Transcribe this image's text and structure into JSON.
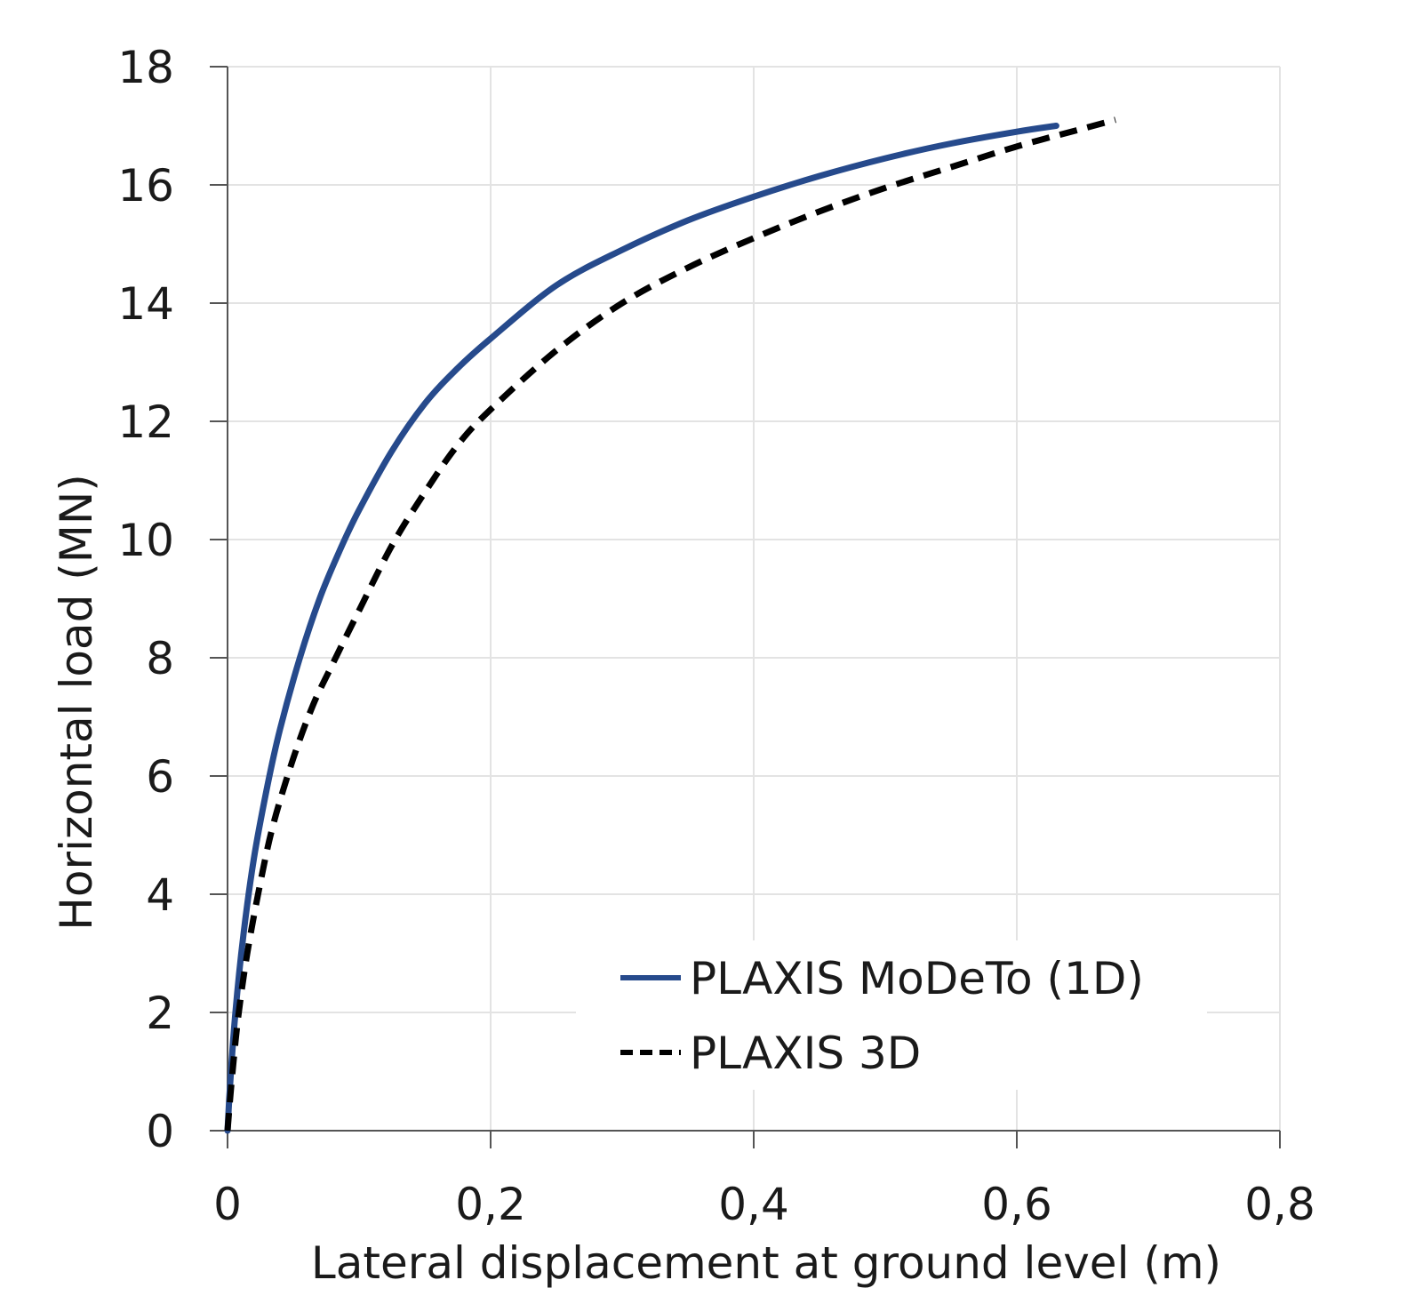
{
  "chart_data": {
    "type": "line",
    "xlabel": "Lateral displacement at ground level (m)",
    "ylabel": "Horizontal load (MN)",
    "xlim": [
      0,
      0.8
    ],
    "ylim": [
      0,
      18
    ],
    "x_ticks": [
      0,
      0.2,
      0.4,
      0.6,
      0.8
    ],
    "x_tick_labels": [
      "0",
      "0,2",
      "0,4",
      "0,6",
      "0,8"
    ],
    "y_ticks": [
      0,
      2,
      4,
      6,
      8,
      10,
      12,
      14,
      16,
      18
    ],
    "y_tick_labels": [
      "0",
      "2",
      "4",
      "6",
      "8",
      "10",
      "12",
      "14",
      "16",
      "18"
    ],
    "grid": true,
    "legend_position": "bottom-right",
    "series": [
      {
        "name": "PLAXIS MoDeTo (1D)",
        "color": "#264a8c",
        "style": "solid",
        "x": [
          0,
          0.002,
          0.006,
          0.012,
          0.02,
          0.03,
          0.04,
          0.055,
          0.07,
          0.085,
          0.1,
          0.125,
          0.15,
          0.175,
          0.2,
          0.25,
          0.3,
          0.35,
          0.4,
          0.45,
          0.5,
          0.55,
          0.6,
          0.63
        ],
        "y": [
          0,
          0.8,
          2.0,
          3.3,
          4.6,
          5.8,
          6.8,
          8.0,
          9.0,
          9.8,
          10.5,
          11.5,
          12.3,
          12.9,
          13.4,
          14.3,
          14.9,
          15.4,
          15.8,
          16.15,
          16.45,
          16.7,
          16.9,
          17.0
        ]
      },
      {
        "name": "PLAXIS 3D",
        "color": "#000000",
        "style": "dashed",
        "x": [
          0,
          0.003,
          0.008,
          0.015,
          0.025,
          0.035,
          0.05,
          0.065,
          0.08,
          0.1,
          0.125,
          0.15,
          0.175,
          0.2,
          0.25,
          0.3,
          0.35,
          0.4,
          0.45,
          0.5,
          0.55,
          0.6,
          0.65,
          0.675
        ],
        "y": [
          0,
          0.8,
          1.9,
          3.0,
          4.2,
          5.2,
          6.3,
          7.2,
          7.9,
          8.8,
          9.9,
          10.8,
          11.6,
          12.2,
          13.2,
          14.0,
          14.6,
          15.1,
          15.55,
          15.95,
          16.3,
          16.65,
          16.95,
          17.1
        ]
      }
    ]
  }
}
